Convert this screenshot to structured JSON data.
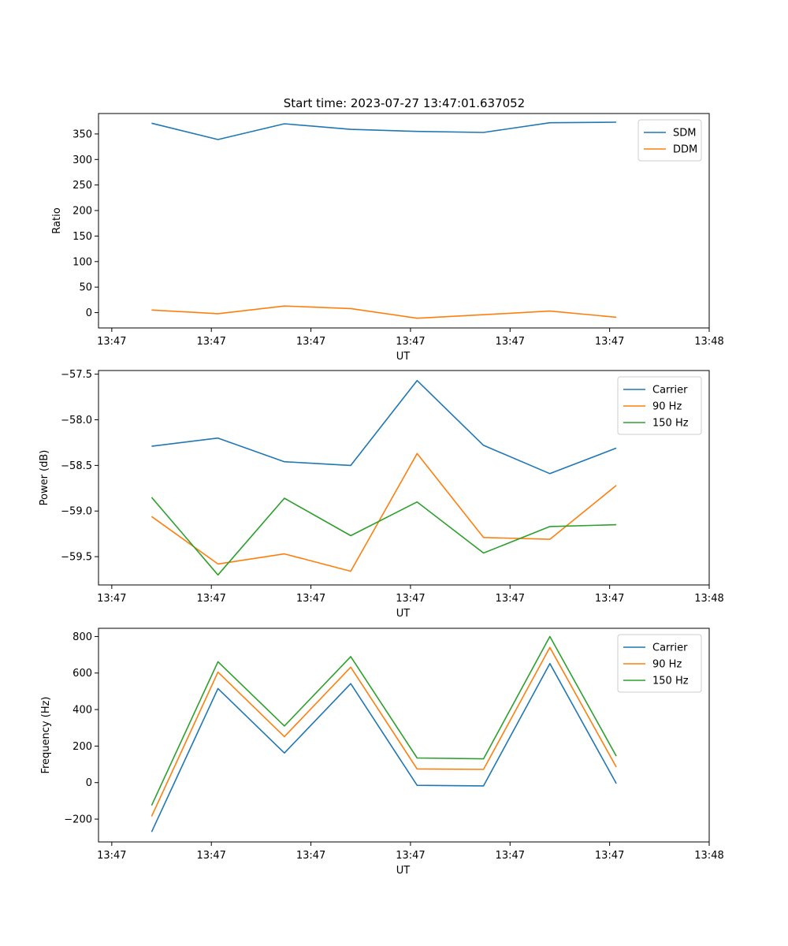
{
  "figure_title": "Start time: 2023-07-27 13:47:01.637052",
  "colors": {
    "blue": "#1f77b4",
    "orange": "#ff7f0e",
    "green": "#2ca02c"
  },
  "chart_data": [
    {
      "type": "line",
      "title": "Start time: 2023-07-27 13:47:01.637052",
      "xlabel": "UT",
      "ylabel": "Ratio",
      "x": [
        1,
        2,
        3,
        4,
        5,
        6,
        7,
        8
      ],
      "xlim": [
        0.2,
        9.4
      ],
      "xticks": [
        0.4,
        1.9,
        3.4,
        4.9,
        6.4,
        7.9,
        9.4
      ],
      "xtick_labels": [
        "13:47",
        "13:47",
        "13:47",
        "13:47",
        "13:47",
        "13:47",
        "13:48"
      ],
      "ylim": [
        -30,
        390
      ],
      "yticks": [
        0,
        50,
        100,
        150,
        200,
        250,
        300,
        350
      ],
      "ytick_labels": [
        "0",
        "50",
        "100",
        "150",
        "200",
        "250",
        "300",
        "350"
      ],
      "legend_position": "top-right",
      "series": [
        {
          "name": "SDM",
          "color": "#1f77b4",
          "values": [
            371,
            339,
            370,
            359,
            355,
            353,
            372,
            373
          ]
        },
        {
          "name": "DDM",
          "color": "#ff7f0e",
          "values": [
            5,
            -2,
            13,
            8,
            -11,
            -4,
            3,
            -9
          ]
        }
      ]
    },
    {
      "type": "line",
      "xlabel": "UT",
      "ylabel": "Power (dB)",
      "x": [
        1,
        2,
        3,
        4,
        5,
        6,
        7,
        8
      ],
      "xlim": [
        0.2,
        9.4
      ],
      "xticks": [
        0.4,
        1.9,
        3.4,
        4.9,
        6.4,
        7.9,
        9.4
      ],
      "xtick_labels": [
        "13:47",
        "13:47",
        "13:47",
        "13:47",
        "13:47",
        "13:47",
        "13:48"
      ],
      "ylim": [
        -59.81,
        -57.46
      ],
      "yticks": [
        -59.5,
        -59.0,
        -58.5,
        -58.0,
        -57.5
      ],
      "ytick_labels": [
        "−59.5",
        "−59.0",
        "−58.5",
        "−58.0",
        "−57.5"
      ],
      "legend_position": "top-right",
      "series": [
        {
          "name": "Carrier",
          "color": "#1f77b4",
          "values": [
            -58.29,
            -58.2,
            -58.46,
            -58.5,
            -57.57,
            -58.28,
            -58.59,
            -58.31
          ]
        },
        {
          "name": "90 Hz",
          "color": "#ff7f0e",
          "values": [
            -59.06,
            -59.58,
            -59.47,
            -59.66,
            -58.37,
            -59.29,
            -59.31,
            -58.72
          ]
        },
        {
          "name": "150 Hz",
          "color": "#2ca02c",
          "values": [
            -58.85,
            -59.7,
            -58.86,
            -59.27,
            -58.9,
            -59.46,
            -59.17,
            -59.15
          ]
        }
      ]
    },
    {
      "type": "line",
      "xlabel": "UT",
      "ylabel": "Frequency (Hz)",
      "x": [
        1,
        2,
        3,
        4,
        5,
        6,
        7,
        8
      ],
      "xlim": [
        0.2,
        9.4
      ],
      "xticks": [
        0.4,
        1.9,
        3.4,
        4.9,
        6.4,
        7.9,
        9.4
      ],
      "xtick_labels": [
        "13:47",
        "13:47",
        "13:47",
        "13:47",
        "13:47",
        "13:47",
        "13:48"
      ],
      "ylim": [
        -325,
        845
      ],
      "yticks": [
        -200,
        0,
        200,
        400,
        600,
        800
      ],
      "ytick_labels": [
        "−200",
        "0",
        "200",
        "400",
        "600",
        "800"
      ],
      "legend_position": "top-right",
      "series": [
        {
          "name": "Carrier",
          "color": "#1f77b4",
          "values": [
            -270,
            515,
            162,
            542,
            -15,
            -18,
            652,
            -5
          ]
        },
        {
          "name": "90 Hz",
          "color": "#ff7f0e",
          "values": [
            -185,
            605,
            252,
            632,
            75,
            72,
            740,
            85
          ]
        },
        {
          "name": "150 Hz",
          "color": "#2ca02c",
          "values": [
            -125,
            662,
            310,
            690,
            135,
            130,
            800,
            145
          ]
        }
      ]
    }
  ]
}
